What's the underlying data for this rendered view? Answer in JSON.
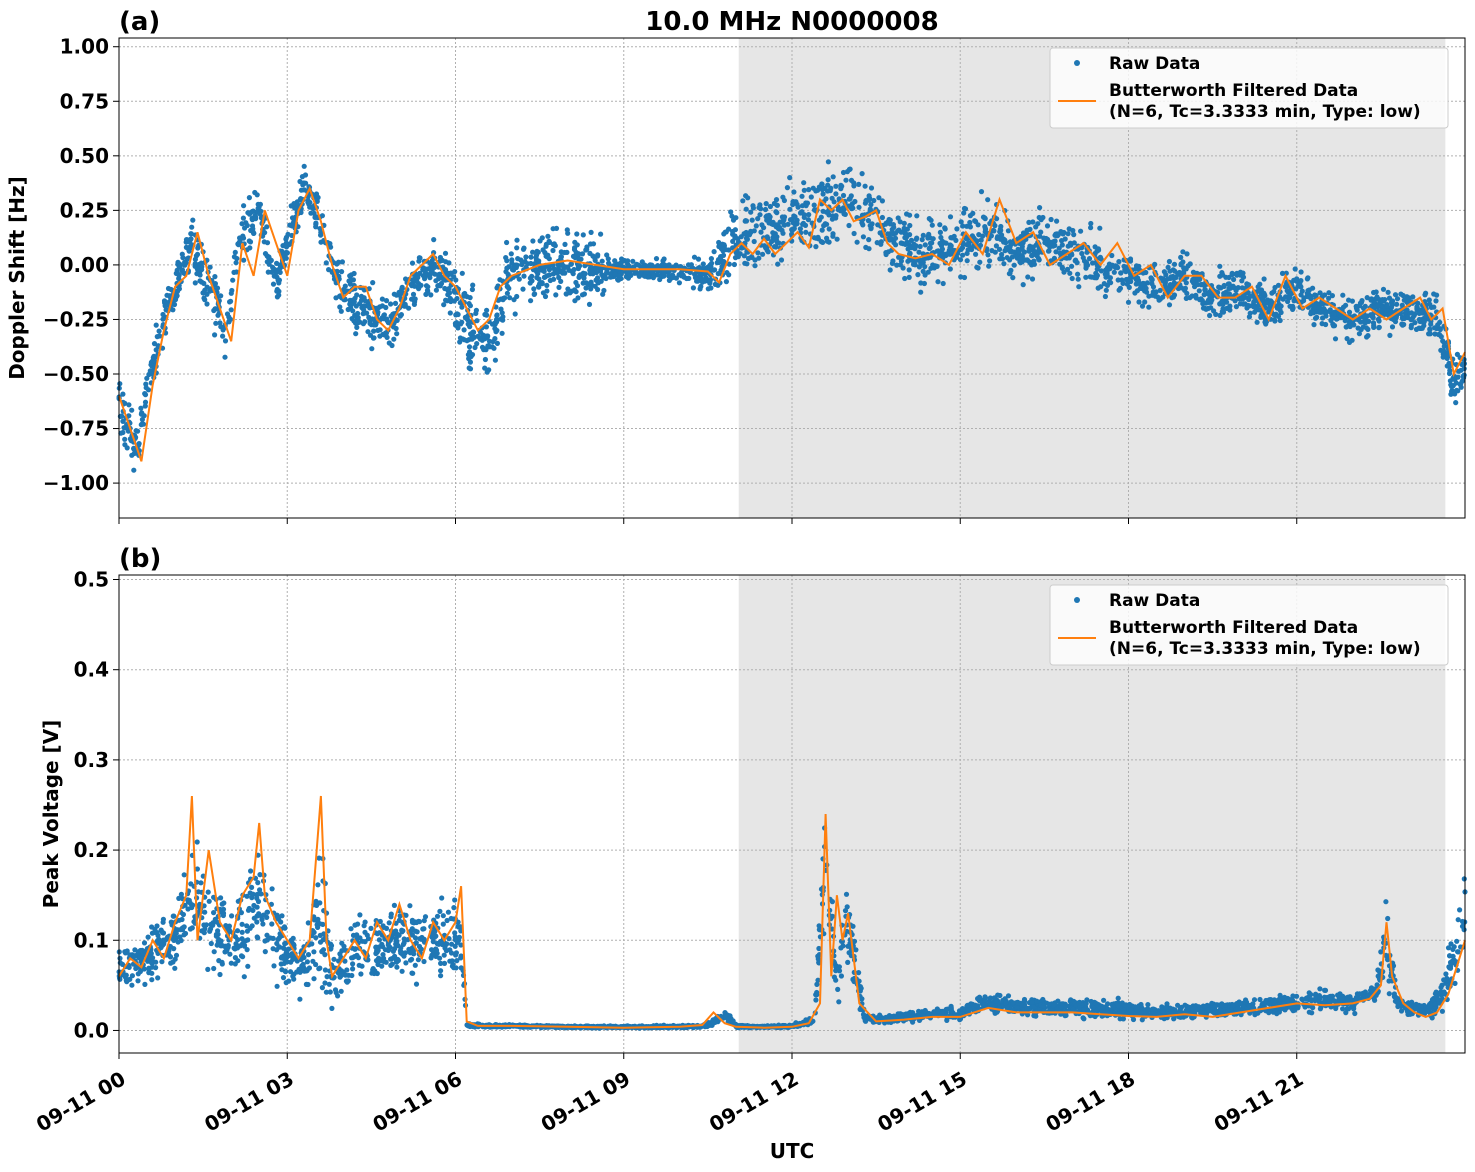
{
  "chart_data": [
    {
      "type": "scatter",
      "panel_label": "(a)",
      "title": "10.0 MHz N0000008",
      "xlabel": "",
      "ylabel": "Doppler Shift [Hz]",
      "xlim": [
        0,
        24
      ],
      "ylim": [
        -1.16,
        1.04
      ],
      "yticks": [
        "1.00",
        "0.75",
        "0.50",
        "0.25",
        "0.00",
        "−0.25",
        "−0.50",
        "−0.75",
        "−1.00"
      ],
      "ytick_values": [
        1.0,
        0.75,
        0.5,
        0.25,
        0.0,
        -0.25,
        -0.5,
        -0.75,
        -1.0
      ],
      "shaded_region_hours": [
        11.05,
        23.65
      ],
      "grid": true,
      "legend_position": "upper right",
      "legend": [
        "Raw Data",
        "Butterworth Filtered Data",
        "(N=6, Tc=3.3333 min, Type: low)"
      ],
      "series": [
        {
          "name": "Raw Data",
          "color": "#1f77b4",
          "style": "points",
          "x_hours": [
            0,
            0.3,
            0.5,
            0.8,
            1.0,
            1.3,
            1.6,
            1.9,
            2.2,
            2.5,
            2.8,
            3.0,
            3.3,
            3.5,
            3.8,
            4.0,
            4.4,
            4.8,
            5.2,
            5.6,
            6.0,
            6.3,
            6.6,
            7.0,
            7.5,
            8.0,
            8.5,
            9.0,
            9.5,
            10.0,
            10.5,
            10.8,
            11.0,
            11.5,
            12.0,
            12.5,
            13.0,
            13.5,
            14.0,
            14.5,
            15.0,
            15.5,
            16.0,
            16.5,
            17.0,
            17.5,
            18.0,
            18.5,
            19.0,
            19.5,
            20.0,
            20.5,
            21.0,
            21.5,
            22.0,
            22.5,
            23.0,
            23.5,
            23.8,
            24.0
          ],
          "center": [
            -0.6,
            -0.85,
            -0.6,
            -0.25,
            -0.1,
            0.1,
            -0.1,
            -0.3,
            0.15,
            0.25,
            -0.1,
            0.1,
            0.35,
            0.25,
            0.0,
            -0.15,
            -0.2,
            -0.3,
            -0.1,
            0.0,
            -0.15,
            -0.3,
            -0.35,
            -0.05,
            0.0,
            0.0,
            -0.02,
            -0.02,
            -0.02,
            -0.03,
            -0.05,
            0.05,
            0.1,
            0.15,
            0.2,
            0.25,
            0.3,
            0.2,
            0.08,
            0.06,
            0.1,
            0.15,
            0.05,
            0.1,
            0.05,
            0.0,
            -0.05,
            -0.1,
            -0.05,
            -0.15,
            -0.1,
            -0.2,
            -0.1,
            -0.2,
            -0.25,
            -0.2,
            -0.2,
            -0.25,
            -0.55,
            -0.45
          ],
          "spread": [
            0.3,
            0.2,
            0.25,
            0.2,
            0.2,
            0.25,
            0.3,
            0.3,
            0.25,
            0.2,
            0.2,
            0.2,
            0.25,
            0.2,
            0.2,
            0.25,
            0.25,
            0.25,
            0.2,
            0.2,
            0.3,
            0.35,
            0.35,
            0.3,
            0.3,
            0.3,
            0.25,
            0.1,
            0.08,
            0.1,
            0.15,
            0.3,
            0.35,
            0.3,
            0.3,
            0.35,
            0.35,
            0.3,
            0.3,
            0.3,
            0.3,
            0.3,
            0.25,
            0.25,
            0.25,
            0.25,
            0.2,
            0.2,
            0.2,
            0.2,
            0.2,
            0.2,
            0.2,
            0.2,
            0.2,
            0.2,
            0.2,
            0.2,
            0.3,
            0.2
          ]
        },
        {
          "name": "Butterworth Filtered Data",
          "color": "#ff7f0e",
          "style": "line",
          "x_hours": [
            0,
            0.2,
            0.4,
            0.6,
            0.8,
            1.0,
            1.2,
            1.4,
            1.6,
            1.8,
            2.0,
            2.2,
            2.4,
            2.6,
            2.8,
            3.0,
            3.2,
            3.4,
            3.6,
            3.8,
            4.0,
            4.2,
            4.4,
            4.6,
            4.8,
            5.0,
            5.2,
            5.4,
            5.6,
            5.8,
            6.0,
            6.2,
            6.4,
            6.6,
            6.8,
            7.0,
            7.5,
            8.0,
            8.5,
            9.0,
            9.5,
            10.0,
            10.5,
            10.7,
            10.9,
            11.1,
            11.3,
            11.5,
            11.7,
            11.9,
            12.1,
            12.3,
            12.5,
            12.7,
            12.9,
            13.1,
            13.3,
            13.5,
            13.7,
            13.9,
            14.2,
            14.5,
            14.8,
            15.1,
            15.4,
            15.7,
            16.0,
            16.3,
            16.6,
            16.9,
            17.2,
            17.5,
            17.8,
            18.1,
            18.4,
            18.7,
            19.0,
            19.3,
            19.6,
            19.9,
            20.2,
            20.5,
            20.8,
            21.1,
            21.4,
            21.7,
            22.0,
            22.3,
            22.6,
            22.9,
            23.2,
            23.4,
            23.6,
            23.8,
            24.0
          ],
          "values": [
            -0.6,
            -0.75,
            -0.9,
            -0.55,
            -0.3,
            -0.1,
            -0.05,
            0.15,
            -0.05,
            -0.2,
            -0.35,
            0.1,
            -0.05,
            0.25,
            0.1,
            -0.05,
            0.25,
            0.35,
            0.2,
            0.0,
            -0.15,
            -0.1,
            -0.1,
            -0.25,
            -0.3,
            -0.2,
            -0.05,
            0.0,
            0.05,
            -0.05,
            -0.1,
            -0.2,
            -0.3,
            -0.25,
            -0.1,
            -0.05,
            0.0,
            0.02,
            0.0,
            -0.02,
            -0.02,
            -0.02,
            -0.03,
            -0.08,
            0.05,
            0.1,
            0.05,
            0.12,
            0.05,
            0.1,
            0.15,
            0.08,
            0.3,
            0.25,
            0.3,
            0.2,
            0.22,
            0.25,
            0.1,
            0.05,
            0.03,
            0.05,
            0.0,
            0.15,
            0.05,
            0.3,
            0.1,
            0.15,
            0.0,
            0.05,
            0.1,
            0.0,
            0.1,
            -0.05,
            0.0,
            -0.15,
            -0.05,
            -0.05,
            -0.15,
            -0.15,
            -0.1,
            -0.25,
            -0.05,
            -0.2,
            -0.15,
            -0.2,
            -0.25,
            -0.2,
            -0.25,
            -0.2,
            -0.15,
            -0.25,
            -0.2,
            -0.5,
            -0.4
          ]
        }
      ]
    },
    {
      "type": "scatter",
      "panel_label": "(b)",
      "title": "",
      "xlabel": "UTC",
      "ylabel": "Peak Voltage [V]",
      "xlim": [
        0,
        24
      ],
      "ylim": [
        -0.025,
        0.505
      ],
      "yticks": [
        "0.5",
        "0.4",
        "0.3",
        "0.2",
        "0.1",
        "0.0"
      ],
      "ytick_values": [
        0.5,
        0.4,
        0.3,
        0.2,
        0.1,
        0.0
      ],
      "xticks": [
        "09-11 00",
        "09-11 03",
        "09-11 06",
        "09-11 09",
        "09-11 12",
        "09-11 15",
        "09-11 18",
        "09-11 21"
      ],
      "xtick_hours": [
        0,
        3,
        6,
        9,
        12,
        15,
        18,
        21
      ],
      "shaded_region_hours": [
        11.05,
        23.65
      ],
      "grid": true,
      "legend_position": "upper right",
      "legend": [
        "Raw Data",
        "Butterworth Filtered Data",
        "(N=6, Tc=3.3333 min, Type: low)"
      ],
      "series": [
        {
          "name": "Raw Data",
          "color": "#1f77b4",
          "style": "points",
          "x_hours": [
            0,
            0.5,
            1.0,
            1.3,
            1.6,
            2.0,
            2.3,
            2.5,
            2.8,
            3.0,
            3.3,
            3.6,
            3.9,
            4.2,
            4.5,
            5.0,
            5.5,
            5.9,
            6.1,
            6.2,
            6.5,
            7.0,
            8.0,
            9.0,
            10.0,
            10.5,
            10.8,
            11.0,
            11.5,
            12.0,
            12.4,
            12.6,
            12.8,
            13.0,
            13.3,
            13.6,
            14.0,
            14.5,
            15.0,
            15.5,
            16.0,
            17.0,
            18.0,
            19.0,
            20.0,
            21.0,
            21.5,
            22.0,
            22.4,
            22.6,
            22.8,
            23.0,
            23.3,
            23.6,
            24.0
          ],
          "center": [
            0.07,
            0.08,
            0.1,
            0.15,
            0.12,
            0.1,
            0.12,
            0.15,
            0.1,
            0.08,
            0.07,
            0.12,
            0.06,
            0.09,
            0.09,
            0.1,
            0.1,
            0.1,
            0.1,
            0.006,
            0.005,
            0.005,
            0.004,
            0.004,
            0.004,
            0.006,
            0.018,
            0.005,
            0.004,
            0.005,
            0.01,
            0.2,
            0.05,
            0.12,
            0.015,
            0.012,
            0.015,
            0.018,
            0.02,
            0.03,
            0.028,
            0.025,
            0.022,
            0.02,
            0.025,
            0.03,
            0.035,
            0.03,
            0.04,
            0.1,
            0.03,
            0.025,
            0.02,
            0.04,
            0.12
          ],
          "spread": [
            0.04,
            0.05,
            0.07,
            0.1,
            0.09,
            0.08,
            0.1,
            0.12,
            0.09,
            0.06,
            0.06,
            0.15,
            0.05,
            0.07,
            0.07,
            0.08,
            0.08,
            0.08,
            0.07,
            0.005,
            0.003,
            0.003,
            0.002,
            0.002,
            0.003,
            0.005,
            0.01,
            0.003,
            0.002,
            0.003,
            0.01,
            0.15,
            0.05,
            0.1,
            0.01,
            0.008,
            0.01,
            0.012,
            0.015,
            0.02,
            0.02,
            0.018,
            0.018,
            0.015,
            0.018,
            0.02,
            0.025,
            0.02,
            0.03,
            0.1,
            0.02,
            0.018,
            0.015,
            0.04,
            0.1
          ]
        },
        {
          "name": "Butterworth Filtered Data",
          "color": "#ff7f0e",
          "style": "line",
          "x_hours": [
            0,
            0.2,
            0.4,
            0.6,
            0.8,
            1.0,
            1.2,
            1.3,
            1.4,
            1.6,
            1.8,
            2.0,
            2.2,
            2.4,
            2.5,
            2.6,
            2.8,
            3.0,
            3.2,
            3.4,
            3.6,
            3.7,
            3.8,
            4.0,
            4.2,
            4.4,
            4.6,
            4.8,
            5.0,
            5.2,
            5.4,
            5.6,
            5.8,
            6.0,
            6.1,
            6.2,
            6.4,
            7.0,
            8.0,
            9.0,
            10.0,
            10.4,
            10.6,
            10.8,
            11.0,
            11.5,
            12.0,
            12.3,
            12.5,
            12.6,
            12.7,
            12.8,
            12.9,
            13.0,
            13.2,
            13.5,
            14.0,
            14.5,
            15.0,
            15.5,
            16.0,
            16.5,
            17.0,
            17.5,
            18.0,
            18.5,
            19.0,
            19.5,
            20.0,
            20.5,
            21.0,
            21.5,
            22.0,
            22.3,
            22.5,
            22.6,
            22.7,
            22.9,
            23.1,
            23.3,
            23.5,
            23.7,
            23.9,
            24.0
          ],
          "values": [
            0.06,
            0.08,
            0.07,
            0.1,
            0.08,
            0.12,
            0.15,
            0.26,
            0.1,
            0.2,
            0.12,
            0.1,
            0.15,
            0.17,
            0.23,
            0.15,
            0.12,
            0.1,
            0.08,
            0.1,
            0.26,
            0.1,
            0.06,
            0.08,
            0.1,
            0.08,
            0.12,
            0.1,
            0.14,
            0.1,
            0.08,
            0.12,
            0.1,
            0.12,
            0.16,
            0.01,
            0.005,
            0.005,
            0.004,
            0.003,
            0.004,
            0.006,
            0.02,
            0.008,
            0.004,
            0.003,
            0.004,
            0.008,
            0.03,
            0.24,
            0.06,
            0.15,
            0.1,
            0.13,
            0.03,
            0.01,
            0.012,
            0.015,
            0.015,
            0.025,
            0.02,
            0.02,
            0.02,
            0.018,
            0.016,
            0.015,
            0.018,
            0.015,
            0.02,
            0.025,
            0.03,
            0.028,
            0.03,
            0.035,
            0.05,
            0.12,
            0.06,
            0.03,
            0.02,
            0.015,
            0.02,
            0.04,
            0.08,
            0.1
          ]
        }
      ]
    }
  ]
}
